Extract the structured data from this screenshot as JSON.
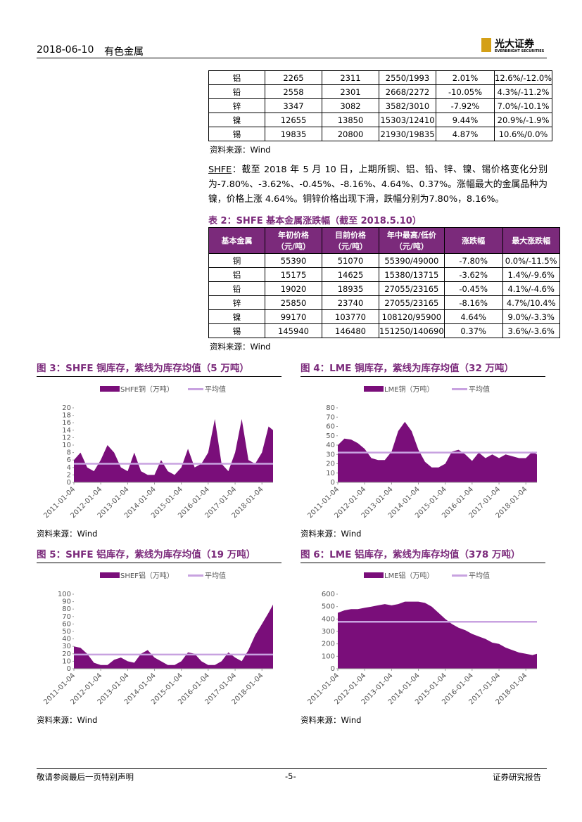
{
  "header": {
    "date": "2018-06-10",
    "section": "有色金属",
    "logo": "光大证券",
    "logo_en": "EVERBRIGHT SECURITIES"
  },
  "table1": {
    "rows": [
      [
        "铝",
        "2265",
        "2311",
        "2550/1993",
        "2.01%",
        "12.6%/-12.0%"
      ],
      [
        "铅",
        "2558",
        "2301",
        "2668/2272",
        "-10.05%",
        "4.3%/-11.2%"
      ],
      [
        "锌",
        "3347",
        "3082",
        "3582/3010",
        "-7.92%",
        "7.0%/-10.1%"
      ],
      [
        "镍",
        "12655",
        "13850",
        "15303/12410",
        "9.44%",
        "20.9%/-1.9%"
      ],
      [
        "锡",
        "19835",
        "20800",
        "21930/19835",
        "4.87%",
        "10.6%/0.0%"
      ]
    ],
    "source": "资料来源：Wind"
  },
  "paragraph": {
    "lead": "SHFE",
    "body": "：截至 2018 年 5 月 10 日，上期所铜、铝、铅、锌、镍、锡价格变化分别为-7.80%、-3.62%、-0.45%、-8.16%、4.64%、0.37%。涨幅最大的金属品种为镍，价格上涨 4.64%。铜锌价格出现下滑，跌幅分别为7.80%，8.16%。"
  },
  "table2": {
    "title": "表 2：SHFE 基本金属涨跌幅（截至 2018.5.10）",
    "columns": [
      "基本金属",
      "年初价格\n（元/吨）",
      "目前价格\n（元/吨）",
      "年中最高/低价\n（元/吨）",
      "涨跌幅",
      "最大涨跌幅"
    ],
    "rows": [
      [
        "铜",
        "55390",
        "51070",
        "55390/49000",
        "-7.80%",
        "0.0%/-11.5%"
      ],
      [
        "铝",
        "15175",
        "14625",
        "15380/13715",
        "-3.62%",
        "1.4%/-9.6%"
      ],
      [
        "铅",
        "19020",
        "18935",
        "27055/23165",
        "-0.45%",
        "4.1%/-4.6%"
      ],
      [
        "锌",
        "25850",
        "23740",
        "27055/23165",
        "-8.16%",
        "4.7%/10.4%"
      ],
      [
        "镍",
        "99170",
        "103770",
        "108120/95900",
        "4.64%",
        "9.0%/-3.3%"
      ],
      [
        "锡",
        "145940",
        "146480",
        "151250/140690",
        "0.37%",
        "3.6%/-3.6%"
      ]
    ],
    "source": "资料来源：Wind"
  },
  "chart_data": [
    {
      "type": "area",
      "title": "图 3：SHFE 铜库存，紫线为库存均值（5 万吨）",
      "source": "资料来源：Wind",
      "x": [
        "2011-01-04",
        "2011-04-04",
        "2011-07-04",
        "2011-10-04",
        "2012-01-04",
        "2012-04-04",
        "2012-07-04",
        "2012-10-04",
        "2013-01-04",
        "2013-04-04",
        "2013-07-04",
        "2013-10-04",
        "2014-01-04",
        "2014-04-04",
        "2014-07-04",
        "2014-10-04",
        "2015-01-04",
        "2015-04-04",
        "2015-07-04",
        "2015-10-04",
        "2016-01-04",
        "2016-04-04",
        "2016-07-04",
        "2016-10-04",
        "2017-01-04",
        "2017-04-04",
        "2017-07-04",
        "2017-10-04",
        "2018-01-04",
        "2018-04-04",
        "2018-06-04"
      ],
      "xlim": [
        "2011-01-04",
        "2018-06-04"
      ],
      "xticks": [
        "2011-01-04",
        "2012-01-04",
        "2013-01-04",
        "2014-01-04",
        "2015-01-04",
        "2016-01-04",
        "2017-01-04",
        "2018-01-04"
      ],
      "ylim": [
        0,
        20
      ],
      "yticks": [
        0,
        2,
        4,
        6,
        8,
        10,
        12,
        14,
        16,
        18,
        20
      ],
      "series": [
        {
          "name": "SHFE铜（万吨）",
          "color": "#7a0e7a",
          "values": [
            6,
            8,
            4,
            3,
            6,
            10,
            8,
            4,
            3,
            8,
            3,
            2,
            2,
            6,
            3,
            2,
            4,
            9,
            4,
            5,
            8,
            17,
            5,
            3,
            8,
            17,
            6,
            5,
            8,
            15,
            14
          ]
        },
        {
          "name": "平均值",
          "type": "line",
          "color": "#c8a2e0",
          "values": [
            5,
            5,
            5,
            5,
            5,
            5,
            5,
            5,
            5,
            5,
            5,
            5,
            5,
            5,
            5,
            5,
            5,
            5,
            5,
            5,
            5,
            5,
            5,
            5,
            5,
            5,
            5,
            5,
            5,
            5,
            5
          ]
        }
      ]
    },
    {
      "type": "area",
      "title": "图 4：LME 铜库存，紫线为库存均值（32 万吨）",
      "source": "资料来源：Wind",
      "x": [
        "2011-01-04",
        "2011-04-04",
        "2011-07-04",
        "2011-10-04",
        "2012-01-04",
        "2012-04-04",
        "2012-07-04",
        "2012-10-04",
        "2013-01-04",
        "2013-04-04",
        "2013-07-04",
        "2013-10-04",
        "2014-01-04",
        "2014-04-04",
        "2014-07-04",
        "2014-10-04",
        "2015-01-04",
        "2015-04-04",
        "2015-07-04",
        "2015-10-04",
        "2016-01-04",
        "2016-04-04",
        "2016-07-04",
        "2016-10-04",
        "2017-01-04",
        "2017-04-04",
        "2017-07-04",
        "2017-10-04",
        "2018-01-04",
        "2018-04-04",
        "2018-06-04"
      ],
      "xlim": [
        "2011-01-04",
        "2018-06-04"
      ],
      "xticks": [
        "2011-01-04",
        "2012-01-04",
        "2013-01-04",
        "2014-01-04",
        "2015-01-04",
        "2016-01-04",
        "2017-01-04",
        "2018-01-04"
      ],
      "ylim": [
        0,
        80
      ],
      "yticks": [
        0,
        10,
        20,
        30,
        40,
        50,
        60,
        70,
        80
      ],
      "series": [
        {
          "name": "LME铜（万吨）",
          "color": "#7a0e7a",
          "values": [
            40,
            47,
            46,
            42,
            36,
            26,
            24,
            24,
            33,
            55,
            65,
            55,
            35,
            22,
            16,
            16,
            20,
            33,
            35,
            30,
            23,
            32,
            26,
            30,
            26,
            30,
            28,
            26,
            26,
            33,
            30
          ]
        },
        {
          "name": "平均值",
          "type": "line",
          "color": "#c8a2e0",
          "values": [
            32,
            32,
            32,
            32,
            32,
            32,
            32,
            32,
            32,
            32,
            32,
            32,
            32,
            32,
            32,
            32,
            32,
            32,
            32,
            32,
            32,
            32,
            32,
            32,
            32,
            32,
            32,
            32,
            32,
            32,
            32
          ]
        }
      ]
    },
    {
      "type": "area",
      "title": "图 5：SHFE 铝库存，紫线为库存均值（19 万吨）",
      "source": "资料来源：Wind",
      "x": [
        "2011-01-04",
        "2011-04-04",
        "2011-07-04",
        "2011-10-04",
        "2012-01-04",
        "2012-04-04",
        "2012-07-04",
        "2012-10-04",
        "2013-01-04",
        "2013-04-04",
        "2013-07-04",
        "2013-10-04",
        "2014-01-04",
        "2014-04-04",
        "2014-07-04",
        "2014-10-04",
        "2015-01-04",
        "2015-04-04",
        "2015-07-04",
        "2015-10-04",
        "2016-01-04",
        "2016-04-04",
        "2016-07-04",
        "2016-10-04",
        "2017-01-04",
        "2017-04-04",
        "2017-07-04",
        "2017-10-04",
        "2018-01-04",
        "2018-04-04",
        "2018-06-04"
      ],
      "xlim": [
        "2011-01-04",
        "2018-06-04"
      ],
      "xticks": [
        "2011-01-04",
        "2012-01-04",
        "2013-01-04",
        "2014-01-04",
        "2015-01-04",
        "2016-01-04",
        "2017-01-04",
        "2018-01-04"
      ],
      "ylim": [
        0,
        100
      ],
      "yticks": [
        0,
        10,
        20,
        30,
        40,
        50,
        60,
        70,
        80,
        90,
        100
      ],
      "series": [
        {
          "name": "SHEF铝（万吨）",
          "color": "#7a0e7a",
          "values": [
            30,
            28,
            20,
            8,
            5,
            5,
            12,
            15,
            10,
            8,
            20,
            25,
            15,
            10,
            5,
            5,
            10,
            22,
            20,
            10,
            5,
            5,
            10,
            22,
            15,
            10,
            25,
            45,
            60,
            75,
            86
          ]
        },
        {
          "name": "平均值",
          "type": "line",
          "color": "#c8a2e0",
          "values": [
            19,
            19,
            19,
            19,
            19,
            19,
            19,
            19,
            19,
            19,
            19,
            19,
            19,
            19,
            19,
            19,
            19,
            19,
            19,
            19,
            19,
            19,
            19,
            19,
            19,
            19,
            19,
            19,
            19,
            19,
            19
          ]
        }
      ]
    },
    {
      "type": "area",
      "title": "图 6：LME 铝库存，紫线为库存均值（378 万吨）",
      "source": "资料来源：Wind",
      "x": [
        "2011-01-04",
        "2011-04-04",
        "2011-07-04",
        "2011-10-04",
        "2012-01-04",
        "2012-04-04",
        "2012-07-04",
        "2012-10-04",
        "2013-01-04",
        "2013-04-04",
        "2013-07-04",
        "2013-10-04",
        "2014-01-04",
        "2014-04-04",
        "2014-07-04",
        "2014-10-04",
        "2015-01-04",
        "2015-04-04",
        "2015-07-04",
        "2015-10-04",
        "2016-01-04",
        "2016-04-04",
        "2016-07-04",
        "2016-10-04",
        "2017-01-04",
        "2017-04-04",
        "2017-07-04",
        "2017-10-04",
        "2018-01-04",
        "2018-04-04",
        "2018-06-04"
      ],
      "xlim": [
        "2011-01-04",
        "2018-06-04"
      ],
      "xticks": [
        "2011-01-04",
        "2012-01-04",
        "2013-01-04",
        "2014-01-04",
        "2015-01-04",
        "2016-01-04",
        "2017-01-04",
        "2018-01-04"
      ],
      "ylim": [
        0,
        600
      ],
      "yticks": [
        0,
        100,
        200,
        300,
        400,
        500,
        600
      ],
      "series": [
        {
          "name": "LME铝（万吨）",
          "color": "#7a0e7a",
          "values": [
            450,
            470,
            480,
            480,
            490,
            500,
            510,
            520,
            510,
            520,
            540,
            540,
            540,
            530,
            500,
            450,
            400,
            360,
            330,
            310,
            280,
            260,
            240,
            210,
            200,
            170,
            150,
            130,
            120,
            110,
            120
          ]
        },
        {
          "name": "平均值",
          "type": "line",
          "color": "#c8a2e0",
          "values": [
            378,
            378,
            378,
            378,
            378,
            378,
            378,
            378,
            378,
            378,
            378,
            378,
            378,
            378,
            378,
            378,
            378,
            378,
            378,
            378,
            378,
            378,
            378,
            378,
            378,
            378,
            378,
            378,
            378,
            378,
            378
          ]
        }
      ]
    }
  ],
  "footer": {
    "left": "敬请参阅最后一页特别声明",
    "center": "-5-",
    "right": "证券研究报告"
  }
}
